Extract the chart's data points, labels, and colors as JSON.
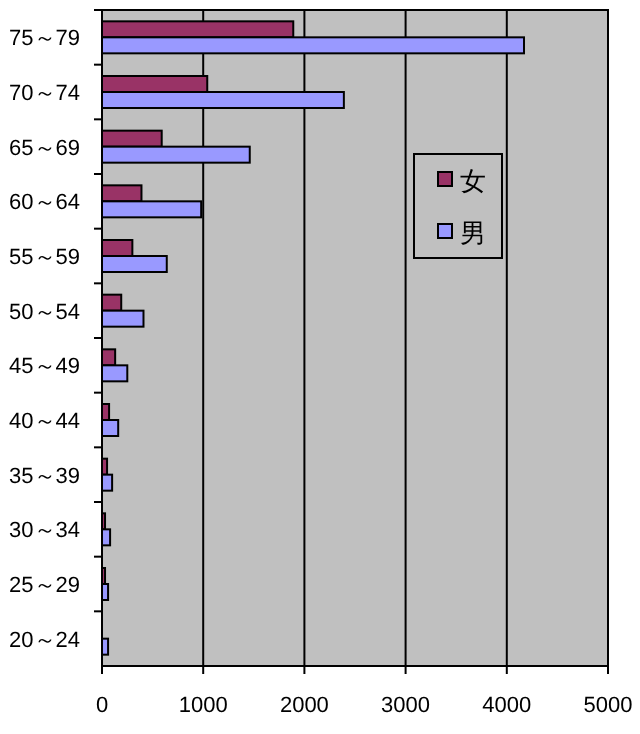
{
  "chart_data": {
    "type": "bar",
    "orientation": "horizontal",
    "categories": [
      "75～79",
      "70～74",
      "65～69",
      "60～64",
      "55～59",
      "50～54",
      "45～49",
      "40～44",
      "35～39",
      "30～34",
      "25～29",
      "20～24"
    ],
    "series": [
      {
        "name": "女",
        "color": "#993366",
        "values": [
          1890,
          1040,
          590,
          390,
          300,
          190,
          130,
          70,
          50,
          30,
          30,
          0
        ]
      },
      {
        "name": "男",
        "color": "#9999ff",
        "values": [
          4170,
          2390,
          1460,
          980,
          640,
          410,
          250,
          160,
          100,
          80,
          60,
          60
        ]
      }
    ],
    "xlim": [
      0,
      5000
    ],
    "xticks": [
      0,
      1000,
      2000,
      3000,
      4000,
      5000
    ],
    "grid": "x",
    "legend": "right"
  }
}
